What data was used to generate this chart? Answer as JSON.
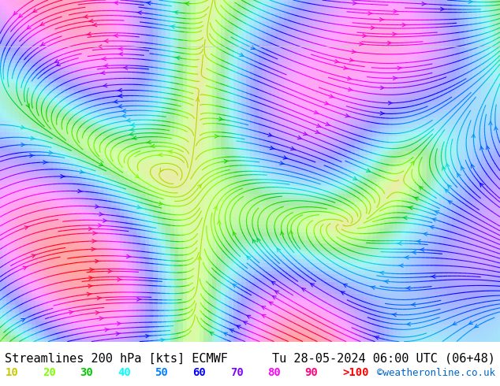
{
  "title_left": "Streamlines 200 hPa [kts] ECMWF",
  "title_right": "Tu 28-05-2024 06:00 UTC (06+48)",
  "watermark": "©weatheronline.co.uk",
  "legend_labels": [
    "10",
    "20",
    "30",
    "40",
    "50",
    "60",
    "70",
    "80",
    "90",
    ">100"
  ],
  "legend_colors": [
    "#c8c800",
    "#80ff00",
    "#00c800",
    "#00ffff",
    "#0080ff",
    "#0000ff",
    "#8000ff",
    "#ff00ff",
    "#ff0080",
    "#ff0000"
  ],
  "bg_color": "#ffffff",
  "map_bg": "#e0e0e0",
  "title_fontsize": 11,
  "legend_fontsize": 10,
  "watermark_color": "#0066cc",
  "streamline_colors": [
    "#c8c800",
    "#80ff00",
    "#00c800",
    "#00e0e0",
    "#0080ff",
    "#0000ff",
    "#8000ff",
    "#ff00ff",
    "#ff0080",
    "#ff0000"
  ],
  "fig_width": 6.34,
  "fig_height": 4.9,
  "dpi": 100
}
